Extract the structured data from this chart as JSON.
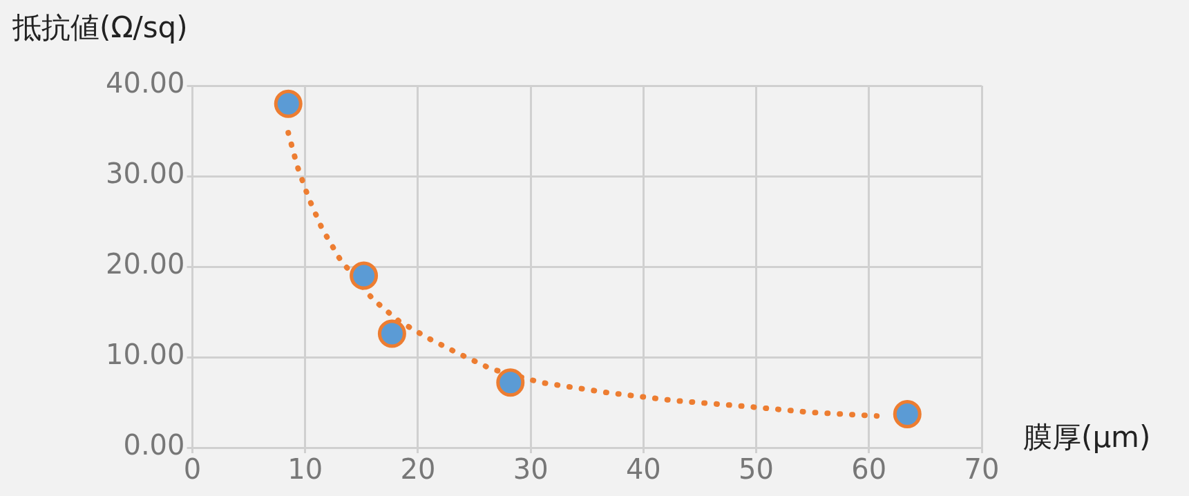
{
  "chart_data": {
    "type": "scatter",
    "xlabel": "膜厚(μm)",
    "ylabel": "抵抗値(Ω/sq)",
    "series": [
      {
        "type": "line",
        "color": "#ed7d31",
        "line_style": "dotted",
        "marker": "none",
        "x": [
          8.5,
          9.3,
          10.3,
          11.5,
          13.1,
          16.0,
          18.3,
          20.9,
          23.6,
          26.5,
          30.9,
          36.7,
          42.7,
          48.7,
          54.8,
          60.7
        ],
        "values": [
          34.8,
          31.1,
          27.6,
          24.2,
          20.8,
          16.4,
          14.0,
          12.1,
          10.4,
          8.7,
          7.2,
          6.1,
          5.2,
          4.6,
          3.9,
          3.5
        ]
      },
      {
        "type": "scatter",
        "color": "#5b9bd5",
        "marker": "circle",
        "x": [
          8.5,
          15.2,
          17.7,
          28.2,
          63.4
        ],
        "values": [
          38.0,
          19.0,
          12.6,
          7.2,
          3.7
        ]
      }
    ],
    "xlim": [
      0,
      70
    ],
    "xticks": [
      0,
      10,
      20,
      30,
      40,
      50,
      60,
      70
    ],
    "ylim": [
      0,
      40
    ],
    "yticks": [
      {
        "value": 0,
        "label": "0.00"
      },
      {
        "value": 10,
        "label": "10.00"
      },
      {
        "value": 20,
        "label": "20.00"
      },
      {
        "value": 30,
        "label": "30.00"
      },
      {
        "value": 40,
        "label": "40.00"
      }
    ],
    "grid": true,
    "legend": false
  }
}
